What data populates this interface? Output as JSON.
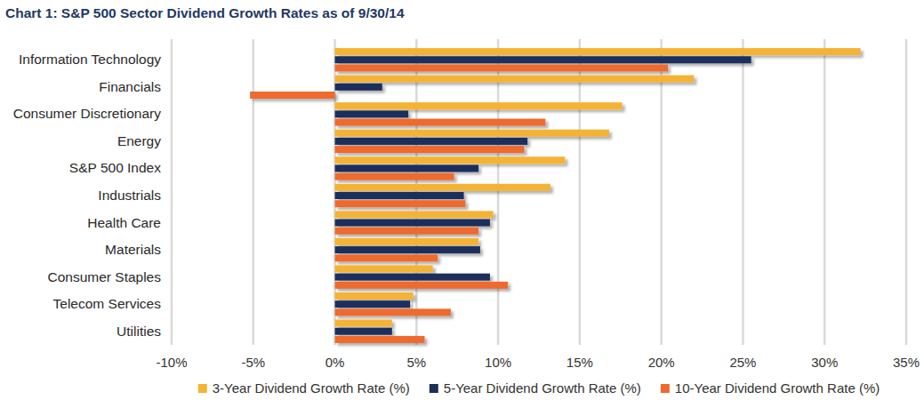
{
  "chart_data": {
    "type": "bar",
    "orientation": "horizontal",
    "title": "Chart 1: S&P 500 Sector Dividend Growth Rates as of 9/30/14",
    "categories": [
      "Information Technology",
      "Financials",
      "Consumer Discretionary",
      "Energy",
      "S&P 500 Index",
      "Industrials",
      "Health Care",
      "Materials",
      "Consumer Staples",
      "Telecom Services",
      "Utilities"
    ],
    "series": [
      {
        "name": "3-Year Dividend Growth Rate (%)",
        "color": "#f5b335",
        "values": [
          32.2,
          22.0,
          17.6,
          16.8,
          14.1,
          13.2,
          9.7,
          8.8,
          6.0,
          4.8,
          3.5
        ]
      },
      {
        "name": "5-Year Dividend Growth Rate (%)",
        "color": "#1b2f5b",
        "values": [
          25.5,
          2.9,
          4.5,
          11.8,
          8.8,
          7.9,
          9.5,
          8.9,
          9.5,
          4.6,
          3.5
        ]
      },
      {
        "name": "10-Year Dividend Growth Rate (%)",
        "color": "#ee6a2f",
        "values": [
          20.4,
          -5.2,
          12.9,
          11.6,
          7.3,
          8.0,
          8.8,
          6.3,
          10.6,
          7.1,
          5.5
        ]
      }
    ],
    "xlim": [
      -10,
      35
    ],
    "xticks": [
      {
        "value": -10,
        "label": "-10%"
      },
      {
        "value": -5,
        "label": "-5%"
      },
      {
        "value": 0,
        "label": "0%"
      },
      {
        "value": 5,
        "label": "5%"
      },
      {
        "value": 10,
        "label": "10%"
      },
      {
        "value": 15,
        "label": "15%"
      },
      {
        "value": 20,
        "label": "20%"
      },
      {
        "value": 25,
        "label": "25%"
      },
      {
        "value": 30,
        "label": "30%"
      },
      {
        "value": 35,
        "label": "35%"
      }
    ],
    "grid": true,
    "legend": "bottom"
  }
}
